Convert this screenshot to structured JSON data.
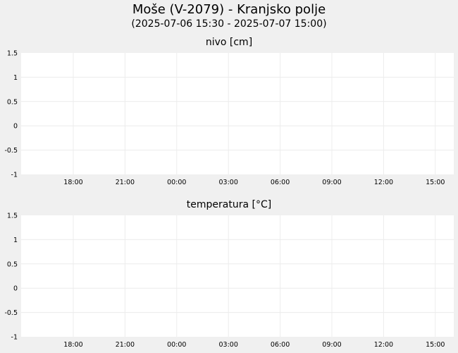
{
  "page": {
    "title": "Moše (V-2079) - Kranjsko polje",
    "subtitle": "(2025-07-06 15:30 - 2025-07-07 15:00)"
  },
  "colors": {
    "background": "#f0f0f0",
    "plot_background": "#ffffff",
    "grid": "#ececec",
    "text": "#000000"
  },
  "chart_data": [
    {
      "type": "line",
      "title": "nivo [cm]",
      "x_tick_labels": [
        "18:00",
        "21:00",
        "00:00",
        "03:00",
        "06:00",
        "09:00",
        "12:00",
        "15:00"
      ],
      "y_tick_labels": [
        "1.5",
        "1",
        "0.5",
        "0",
        "-0.5",
        "-1"
      ],
      "ylim": [
        -1,
        1.5
      ],
      "grid": true,
      "series": []
    },
    {
      "type": "line",
      "title": "temperatura [°C]",
      "x_tick_labels": [
        "18:00",
        "21:00",
        "00:00",
        "03:00",
        "06:00",
        "09:00",
        "12:00",
        "15:00"
      ],
      "y_tick_labels": [
        "1.5",
        "1",
        "0.5",
        "0",
        "-0.5",
        "-1"
      ],
      "ylim": [
        -1,
        1.5
      ],
      "grid": true,
      "series": []
    }
  ]
}
